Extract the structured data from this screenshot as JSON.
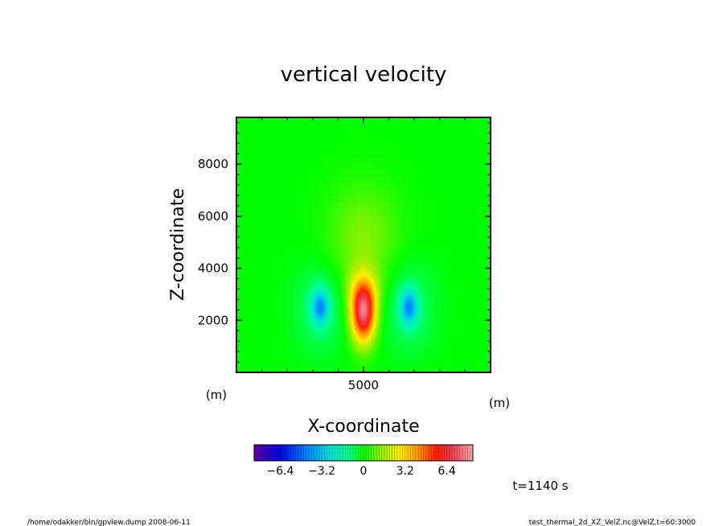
{
  "chart_data": {
    "type": "heatmap",
    "title": "vertical velocity",
    "xlabel": "X-coordinate",
    "ylabel": "Z-coordinate",
    "x_unit": "(m)",
    "y_unit": "(m)",
    "xlim": [
      0,
      10000
    ],
    "ylim": [
      0,
      9800
    ],
    "x_ticks": [
      {
        "value": 5000,
        "label": "5000"
      }
    ],
    "y_ticks": [
      {
        "value": 2000,
        "label": "2000"
      },
      {
        "value": 4000,
        "label": "4000"
      },
      {
        "value": 6000,
        "label": "6000"
      },
      {
        "value": 8000,
        "label": "8000"
      }
    ],
    "field": {
      "updraft": {
        "x": 5000,
        "z": 2400,
        "peak": 7.8
      },
      "downdrafts": [
        {
          "x": 3300,
          "z": 2500,
          "peak": -3.4
        },
        {
          "x": 6800,
          "z": 2500,
          "peak": -3.4
        }
      ]
    },
    "colorbar": {
      "range": [
        -8.4,
        8.4
      ],
      "tick_values": [
        -6.4,
        -3.2,
        0,
        3.2,
        6.4
      ],
      "tick_labels": [
        "−6.4",
        "−3.2",
        "0",
        "3.2",
        "6.4"
      ]
    },
    "time_label": "t=1140 s",
    "footer_left": "/home/odakker/bin/gpview.dump  2008-06-11",
    "footer_right": "test_thermal_2d_XZ_VelZ.nc@VelZ,t=60:3000"
  }
}
